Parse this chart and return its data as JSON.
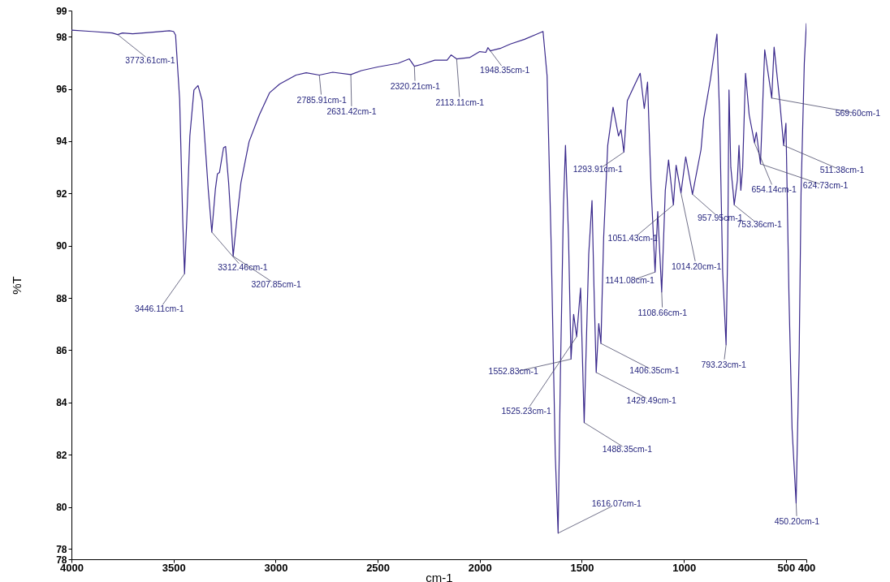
{
  "chart_data": {
    "type": "line",
    "xlabel": "cm-1",
    "ylabel": "%T",
    "color": "#3b2a8c",
    "grid": false,
    "xlim": [
      4000,
      400
    ],
    "ylim": [
      78,
      99
    ],
    "xticks": [
      4000,
      3500,
      3000,
      2500,
      2000,
      1500,
      1000,
      500,
      400
    ],
    "yticks": [
      78,
      {
        "value": 78.4,
        "label": "78"
      },
      80,
      82,
      84,
      86,
      88,
      90,
      92,
      94,
      96,
      98,
      99
    ],
    "x": [
      4000,
      3900,
      3800,
      3773.61,
      3750,
      3700,
      3600,
      3520,
      3500,
      3490,
      3470,
      3455,
      3446.11,
      3435,
      3420,
      3400,
      3380,
      3360,
      3330,
      3312.46,
      3295,
      3285,
      3275,
      3255,
      3245,
      3230,
      3207.85,
      3190,
      3170,
      3130,
      3080,
      3030,
      2980,
      2900,
      2850,
      2785.91,
      2720,
      2631.42,
      2580,
      2500,
      2400,
      2345,
      2320.21,
      2280,
      2220,
      2160,
      2140,
      2113.11,
      2050,
      2000,
      1970,
      1960,
      1948.35,
      1900,
      1850,
      1780,
      1720,
      1690,
      1670,
      1650,
      1630,
      1616.07,
      1605,
      1590,
      1580,
      1565,
      1552.83,
      1540,
      1525.23,
      1506,
      1488.35,
      1466,
      1450,
      1440,
      1429.49,
      1417,
      1406.35,
      1393,
      1373,
      1347,
      1320,
      1308,
      1293.91,
      1277,
      1241,
      1214,
      1194,
      1178,
      1161,
      1141.08,
      1128,
      1108.66,
      1091,
      1075,
      1051.43,
      1038,
      1014.2,
      991,
      957.95,
      916,
      903,
      870,
      838,
      825,
      810,
      793.23,
      785,
      779,
      770,
      758,
      753.36,
      748,
      738,
      730,
      721,
      712,
      698,
      680,
      654.14,
      645,
      624.73,
      604,
      569.6,
      558,
      530,
      511.38,
      500,
      485,
      470,
      450.2,
      435,
      426,
      410,
      400
    ],
    "values": [
      98.25,
      98.2,
      98.14,
      98.08,
      98.14,
      98.11,
      98.17,
      98.23,
      98.2,
      98.06,
      95.6,
      91.0,
      88.93,
      91.0,
      94.2,
      95.96,
      96.13,
      95.56,
      92.16,
      90.52,
      92.16,
      92.75,
      92.8,
      93.75,
      93.8,
      92.4,
      89.6,
      91.0,
      92.4,
      93.98,
      95.0,
      95.85,
      96.19,
      96.53,
      96.62,
      96.53,
      96.64,
      96.55,
      96.7,
      96.84,
      96.98,
      97.15,
      96.87,
      96.95,
      97.1,
      97.1,
      97.3,
      97.15,
      97.2,
      97.43,
      97.4,
      97.58,
      97.46,
      97.55,
      97.72,
      97.9,
      98.1,
      98.2,
      96.5,
      90.0,
      82.0,
      79.0,
      85.0,
      91.5,
      93.84,
      90.3,
      85.66,
      87.37,
      86.52,
      88.38,
      83.23,
      89.69,
      91.73,
      88.3,
      85.15,
      87.02,
      86.26,
      90.3,
      93.84,
      95.3,
      94.2,
      94.44,
      93.58,
      95.55,
      96.16,
      96.6,
      95.25,
      96.26,
      92.32,
      88.99,
      91.31,
      88.23,
      92.12,
      93.28,
      91.56,
      93.08,
      92.02,
      93.4,
      91.97,
      93.68,
      94.85,
      96.36,
      98.1,
      95.0,
      89.0,
      86.21,
      90.0,
      95.96,
      93.0,
      92.0,
      91.56,
      91.9,
      92.5,
      93.84,
      92.12,
      93.0,
      96.6,
      95.0,
      93.94,
      94.34,
      93.13,
      97.5,
      95.65,
      97.6,
      95.5,
      93.84,
      94.69,
      88.0,
      83.0,
      80.15,
      86.0,
      92.0,
      97.0,
      98.5
    ],
    "annotations": [
      {
        "text": "3773.61cm-1",
        "x": 3773.61,
        "y": 98.08
      },
      {
        "text": "3446.11cm-1",
        "x": 3446.11,
        "y": 88.93
      },
      {
        "text": "3312.46cm-1",
        "x": 3312.46,
        "y": 90.52
      },
      {
        "text": "3207.85cm-1",
        "x": 3207.85,
        "y": 89.6
      },
      {
        "text": "2785.91cm-1",
        "x": 2785.91,
        "y": 96.53
      },
      {
        "text": "2631.42cm-1",
        "x": 2631.42,
        "y": 96.55
      },
      {
        "text": "2320.21cm-1",
        "x": 2320.21,
        "y": 96.87
      },
      {
        "text": "2113.11cm-1",
        "x": 2113.11,
        "y": 97.15
      },
      {
        "text": "1948.35cm-1",
        "x": 1948.35,
        "y": 97.46
      },
      {
        "text": "1616.07cm-1",
        "x": 1616.07,
        "y": 79.0
      },
      {
        "text": "1552.83cm-1",
        "x": 1552.83,
        "y": 85.66
      },
      {
        "text": "1525.23cm-1",
        "x": 1525.23,
        "y": 86.52
      },
      {
        "text": "1488.35cm-1",
        "x": 1488.35,
        "y": 83.23
      },
      {
        "text": "1429.49cm-1",
        "x": 1429.49,
        "y": 85.15
      },
      {
        "text": "1406.35cm-1",
        "x": 1406.35,
        "y": 86.26
      },
      {
        "text": "1293.91cm-1",
        "x": 1293.91,
        "y": 93.58
      },
      {
        "text": "1141.08cm-1",
        "x": 1141.08,
        "y": 88.99
      },
      {
        "text": "1108.66cm-1",
        "x": 1108.66,
        "y": 88.23
      },
      {
        "text": "1051.43cm-1",
        "x": 1051.43,
        "y": 91.56
      },
      {
        "text": "1014.20cm-1",
        "x": 1014.2,
        "y": 92.02
      },
      {
        "text": "957.95cm-1",
        "x": 957.95,
        "y": 91.97
      },
      {
        "text": "793.23cm-1",
        "x": 793.23,
        "y": 86.21
      },
      {
        "text": "753.36cm-1",
        "x": 753.36,
        "y": 91.56
      },
      {
        "text": "654.14cm-1",
        "x": 654.14,
        "y": 93.94
      },
      {
        "text": "624.73cm-1",
        "x": 624.73,
        "y": 93.13
      },
      {
        "text": "569.60cm-1",
        "x": 569.6,
        "y": 95.65
      },
      {
        "text": "511.38cm-1",
        "x": 511.38,
        "y": 93.84
      },
      {
        "text": "450.20cm-1",
        "x": 450.2,
        "y": 80.15
      }
    ]
  }
}
